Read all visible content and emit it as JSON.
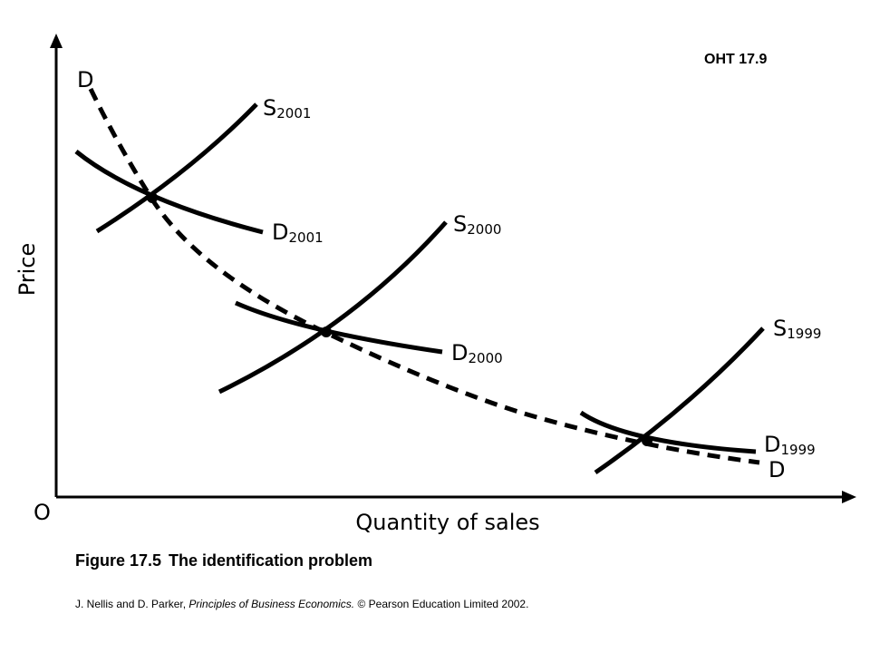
{
  "oht": "OHT 17.9",
  "figure": {
    "number": "Figure 17.5",
    "title": "The identification problem"
  },
  "credit": {
    "authors": "J. Nellis and D. Parker,",
    "book": "Principles of Business Economics.",
    "copyright": "© Pearson Education Limited 2002."
  },
  "axes": {
    "y_label": "Price",
    "x_label": "Quantity of sales",
    "origin": "O"
  },
  "curves": {
    "d_dashed": {
      "letter": "D"
    },
    "s2001": {
      "letter": "S",
      "year": "2001"
    },
    "d2001": {
      "letter": "D",
      "year": "2001"
    },
    "s2000": {
      "letter": "S",
      "year": "2000"
    },
    "d2000": {
      "letter": "D",
      "year": "2000"
    },
    "s1999": {
      "letter": "S",
      "year": "1999"
    },
    "d1999": {
      "letter": "D",
      "year": "1999"
    }
  }
}
